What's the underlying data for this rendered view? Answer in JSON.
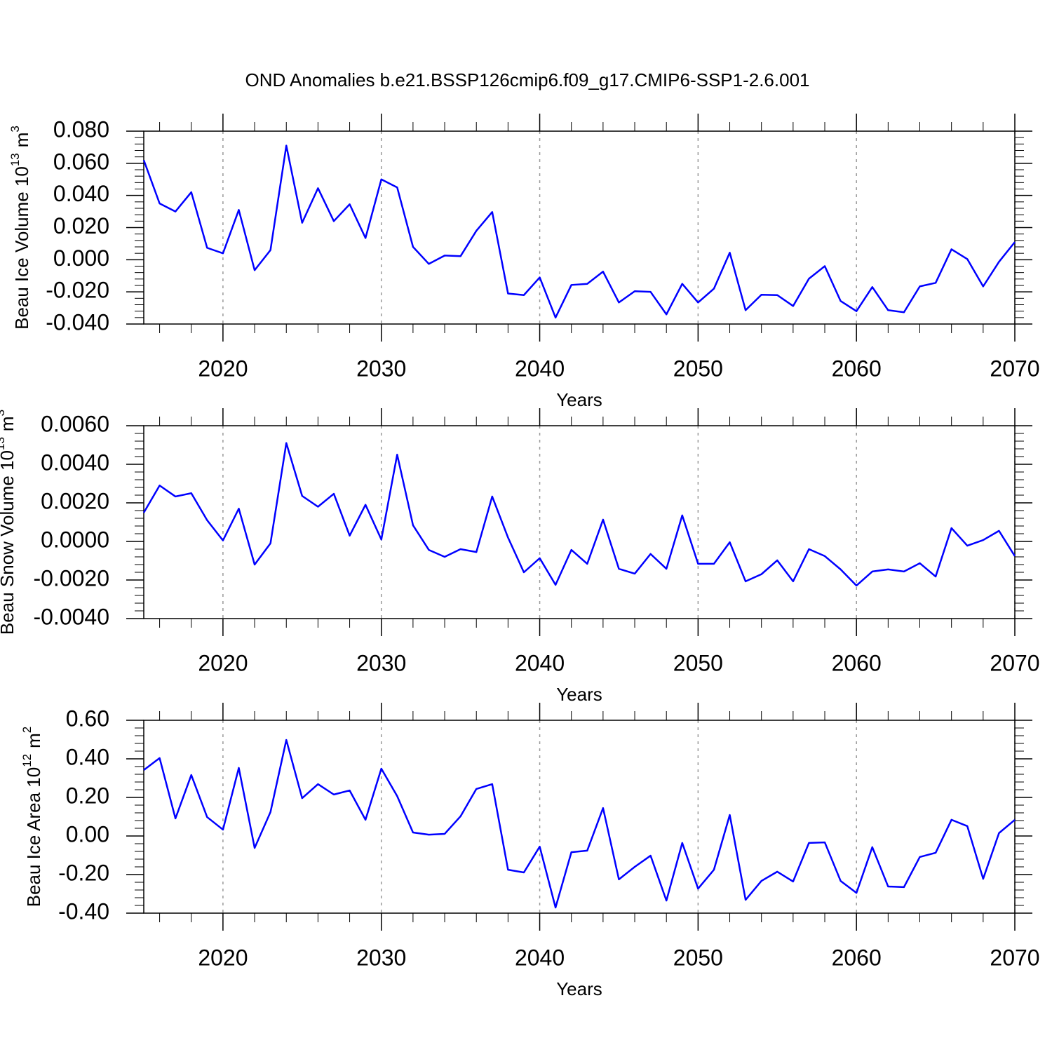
{
  "title": "OND Anomalies b.e21.BSSP126cmip6.f09_g17.CMIP6-SSP1-2.6.001",
  "chart_data": [
    {
      "type": "line",
      "xlabel": "Years",
      "ylabel": {
        "text": "Beau Ice Volume 10",
        "exponent": "13",
        "unit": "m",
        "unit_exponent": "3"
      },
      "x": [
        2015,
        2016,
        2017,
        2018,
        2019,
        2020,
        2021,
        2022,
        2023,
        2024,
        2025,
        2026,
        2027,
        2028,
        2029,
        2030,
        2031,
        2032,
        2033,
        2034,
        2035,
        2036,
        2037,
        2038,
        2039,
        2040,
        2041,
        2042,
        2043,
        2044,
        2045,
        2046,
        2047,
        2048,
        2049,
        2050,
        2051,
        2052,
        2053,
        2054,
        2055,
        2056,
        2057,
        2058,
        2059,
        2060,
        2061,
        2062,
        2063,
        2064,
        2065,
        2066,
        2067,
        2068,
        2069,
        2070
      ],
      "values": [
        0.062,
        0.035,
        0.03,
        0.042,
        0.0074,
        0.004,
        0.031,
        -0.0065,
        0.006,
        0.071,
        0.023,
        0.0445,
        0.024,
        0.0345,
        0.0135,
        0.05,
        0.045,
        0.008,
        -0.0026,
        0.0026,
        0.0022,
        0.018,
        0.0297,
        -0.021,
        -0.022,
        -0.011,
        -0.036,
        -0.0157,
        -0.015,
        -0.0074,
        -0.0266,
        -0.0196,
        -0.02,
        -0.034,
        -0.015,
        -0.0266,
        -0.018,
        0.0044,
        -0.0314,
        -0.0218,
        -0.022,
        -0.0288,
        -0.0118,
        -0.004,
        -0.0257,
        -0.032,
        -0.017,
        -0.0314,
        -0.0327,
        -0.0166,
        -0.0144,
        0.0065,
        0.0004,
        -0.0166,
        -0.0013,
        0.011
      ],
      "color": "#0000ff",
      "xlim": [
        2015,
        2070
      ],
      "xticks": [
        2020,
        2030,
        2040,
        2050,
        2060,
        2070
      ],
      "ylim": [
        -0.04,
        0.08
      ],
      "yticks": [
        {
          "value": -0.04,
          "label": "-0.040"
        },
        {
          "value": -0.02,
          "label": "-0.020"
        },
        {
          "value": 0,
          "label": "0.000"
        },
        {
          "value": 0.02,
          "label": "0.020"
        },
        {
          "value": 0.04,
          "label": "0.040"
        },
        {
          "value": 0.06,
          "label": "0.060"
        },
        {
          "value": 0.08,
          "label": "0.080"
        }
      ],
      "xgrid": true
    },
    {
      "type": "line",
      "xlabel": "Years",
      "ylabel": {
        "text": "Beau Snow Volume 10",
        "exponent": "13",
        "unit": "m",
        "unit_exponent": "3"
      },
      "x": [
        2015,
        2016,
        2017,
        2018,
        2019,
        2020,
        2021,
        2022,
        2023,
        2024,
        2025,
        2026,
        2027,
        2028,
        2029,
        2030,
        2031,
        2032,
        2033,
        2034,
        2035,
        2036,
        2037,
        2038,
        2039,
        2040,
        2041,
        2042,
        2043,
        2044,
        2045,
        2046,
        2047,
        2048,
        2049,
        2050,
        2051,
        2052,
        2053,
        2054,
        2055,
        2056,
        2057,
        2058,
        2059,
        2060,
        2061,
        2062,
        2063,
        2064,
        2065,
        2066,
        2067,
        2068,
        2069,
        2070
      ],
      "values": [
        0.00149,
        0.0029,
        0.00233,
        0.0025,
        0.0011,
        5e-05,
        0.0017,
        -0.0012,
        -0.0001,
        0.0051,
        0.00236,
        0.0018,
        0.00247,
        0.0003,
        0.0019,
        0.0001,
        0.0045,
        0.00084,
        -0.00044,
        -0.0008,
        -0.0004,
        -0.00055,
        0.00233,
        0.0002,
        -0.0016,
        -0.00087,
        -0.00225,
        -0.00044,
        -0.00116,
        0.00113,
        -0.00142,
        -0.00167,
        -0.00065,
        -0.00142,
        0.00135,
        -0.00116,
        -0.00116,
        -4e-05,
        -0.00207,
        -0.0017,
        -0.00098,
        -0.00207,
        -0.0004,
        -0.00076,
        -0.00145,
        -0.00229,
        -0.00156,
        -0.00145,
        -0.00156,
        -0.00113,
        -0.00182,
        0.00069,
        -0.00022,
        7e-05,
        0.00055,
        -0.00076
      ],
      "color": "#0000ff",
      "xlim": [
        2015,
        2070
      ],
      "xticks": [
        2020,
        2030,
        2040,
        2050,
        2060,
        2070
      ],
      "ylim": [
        -0.004,
        0.006
      ],
      "yticks": [
        {
          "value": -0.004,
          "label": "-0.0040"
        },
        {
          "value": -0.002,
          "label": "-0.0020"
        },
        {
          "value": 0,
          "label": "0.0000"
        },
        {
          "value": 0.002,
          "label": "0.0020"
        },
        {
          "value": 0.004,
          "label": "0.0040"
        },
        {
          "value": 0.006,
          "label": "0.0060"
        }
      ],
      "xgrid": true
    },
    {
      "type": "line",
      "xlabel": "Years",
      "ylabel": {
        "text": "Beau Ice Area 10",
        "exponent": "12",
        "unit": "m",
        "unit_exponent": "2"
      },
      "x": [
        2015,
        2016,
        2017,
        2018,
        2019,
        2020,
        2021,
        2022,
        2023,
        2024,
        2025,
        2026,
        2027,
        2028,
        2029,
        2030,
        2031,
        2032,
        2033,
        2034,
        2035,
        2036,
        2037,
        2038,
        2039,
        2040,
        2041,
        2042,
        2043,
        2044,
        2045,
        2046,
        2047,
        2048,
        2049,
        2050,
        2051,
        2052,
        2053,
        2054,
        2055,
        2056,
        2057,
        2058,
        2059,
        2060,
        2061,
        2062,
        2063,
        2064,
        2065,
        2066,
        2067,
        2068,
        2069,
        2070
      ],
      "values": [
        0.342,
        0.404,
        0.091,
        0.316,
        0.098,
        0.033,
        0.353,
        -0.062,
        0.124,
        0.498,
        0.196,
        0.269,
        0.215,
        0.236,
        0.084,
        0.349,
        0.207,
        0.018,
        0.007,
        0.011,
        0.102,
        0.244,
        0.269,
        -0.175,
        -0.189,
        -0.055,
        -0.371,
        -0.084,
        -0.076,
        0.145,
        -0.225,
        -0.16,
        -0.102,
        -0.335,
        -0.036,
        -0.273,
        -0.175,
        0.109,
        -0.331,
        -0.233,
        -0.185,
        -0.236,
        -0.036,
        -0.033,
        -0.233,
        -0.295,
        -0.058,
        -0.262,
        -0.265,
        -0.109,
        -0.087,
        0.084,
        0.051,
        -0.222,
        0.015,
        0.084
      ],
      "color": "#0000ff",
      "xlim": [
        2015,
        2070
      ],
      "xticks": [
        2020,
        2030,
        2040,
        2050,
        2060,
        2070
      ],
      "ylim": [
        -0.4,
        0.6
      ],
      "yticks": [
        {
          "value": -0.4,
          "label": "-0.40"
        },
        {
          "value": -0.2,
          "label": "-0.20"
        },
        {
          "value": 0,
          "label": "0.00"
        },
        {
          "value": 0.2,
          "label": "0.20"
        },
        {
          "value": 0.4,
          "label": "0.40"
        },
        {
          "value": 0.6,
          "label": "0.60"
        }
      ],
      "xgrid": true
    }
  ]
}
